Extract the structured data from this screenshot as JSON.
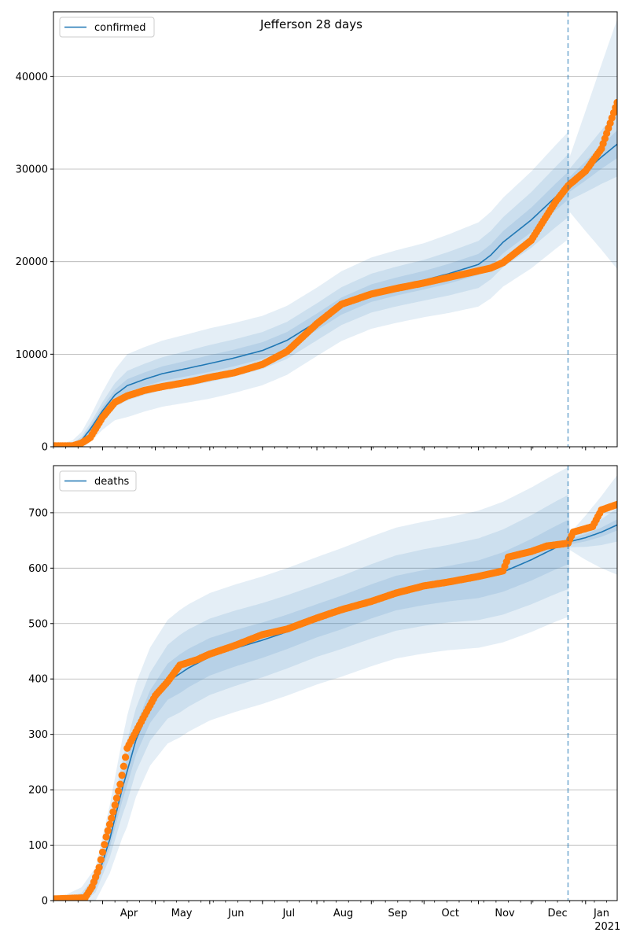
{
  "page_title": "Jefferson 28 days",
  "colors": {
    "line": "#1f77b4",
    "observed": "#ff7f0e",
    "band": "#1f77b4",
    "vline": "#1f77b4",
    "grid": "#b0b0b0"
  },
  "x_ticks": {
    "month_labels": [
      "Apr",
      "May",
      "Jun",
      "Jul",
      "Aug",
      "Sep",
      "Oct",
      "Nov",
      "Dec",
      "Jan"
    ],
    "year_label": "2021"
  },
  "chart_data": [
    {
      "type": "line",
      "legend_label": "confirmed",
      "legend_position": "top-left",
      "grid": "horizontal",
      "xlim": [
        "2020-03-04",
        "2021-01-19"
      ],
      "ylim": [
        0,
        47000
      ],
      "yticks": [
        0,
        10000,
        20000,
        30000,
        40000
      ],
      "ytick_labels": [
        "0",
        "10000",
        "20000",
        "30000",
        "40000"
      ],
      "forecast_start": "2020-12-22",
      "median": [
        [
          "2020-03-04",
          0
        ],
        [
          "2020-03-15",
          100
        ],
        [
          "2020-03-20",
          700
        ],
        [
          "2020-03-25",
          1900
        ],
        [
          "2020-04-01",
          3900
        ],
        [
          "2020-04-08",
          5600
        ],
        [
          "2020-04-15",
          6600
        ],
        [
          "2020-04-25",
          7300
        ],
        [
          "2020-05-05",
          7900
        ],
        [
          "2020-05-20",
          8500
        ],
        [
          "2020-06-01",
          9000
        ],
        [
          "2020-06-15",
          9600
        ],
        [
          "2020-07-01",
          10400
        ],
        [
          "2020-07-15",
          11500
        ],
        [
          "2020-08-01",
          13500
        ],
        [
          "2020-08-15",
          15200
        ],
        [
          "2020-09-01",
          16600
        ],
        [
          "2020-09-15",
          17300
        ],
        [
          "2020-10-01",
          18000
        ],
        [
          "2020-10-15",
          18700
        ],
        [
          "2020-11-01",
          19700
        ],
        [
          "2020-11-08",
          20700
        ],
        [
          "2020-11-15",
          22100
        ],
        [
          "2020-12-01",
          24500
        ],
        [
          "2020-12-15",
          27000
        ],
        [
          "2020-12-22",
          28200
        ],
        [
          "2021-01-01",
          29800
        ],
        [
          "2021-01-10",
          31300
        ],
        [
          "2021-01-19",
          32700
        ]
      ],
      "inner_band_halfwidth": [
        [
          "2020-03-04",
          0
        ],
        [
          "2020-03-20",
          200
        ],
        [
          "2020-04-15",
          700
        ],
        [
          "2020-06-01",
          900
        ],
        [
          "2020-08-01",
          900
        ],
        [
          "2020-10-01",
          1000
        ],
        [
          "2020-11-15",
          1200
        ],
        [
          "2020-12-22",
          1500
        ],
        [
          "2020-12-23",
          800
        ],
        [
          "2021-01-19",
          1500
        ]
      ],
      "middle_band_halfwidth": [
        [
          "2020-03-04",
          0
        ],
        [
          "2020-03-20",
          400
        ],
        [
          "2020-04-15",
          1600
        ],
        [
          "2020-06-01",
          2000
        ],
        [
          "2020-08-01",
          2000
        ],
        [
          "2020-10-01",
          2200
        ],
        [
          "2020-11-15",
          2700
        ],
        [
          "2020-12-22",
          3400
        ],
        [
          "2020-12-23",
          1700
        ],
        [
          "2021-01-19",
          3500
        ]
      ],
      "outer_band_halfwidth": [
        [
          "2020-03-04",
          0
        ],
        [
          "2020-03-20",
          900
        ],
        [
          "2020-04-15",
          3400
        ],
        [
          "2020-06-01",
          3800
        ],
        [
          "2020-08-01",
          3700
        ],
        [
          "2020-10-01",
          4000
        ],
        [
          "2020-11-15",
          4800
        ],
        [
          "2020-12-22",
          5800
        ],
        [
          "2020-12-23",
          3000
        ],
        [
          "2021-01-19",
          13500
        ]
      ],
      "observed": [
        [
          "2020-03-04",
          100
        ],
        [
          "2020-03-15",
          100
        ],
        [
          "2020-03-20",
          400
        ],
        [
          "2020-03-25",
          1000
        ],
        [
          "2020-04-01",
          3200
        ],
        [
          "2020-04-08",
          4800
        ],
        [
          "2020-04-15",
          5500
        ],
        [
          "2020-04-25",
          6100
        ],
        [
          "2020-05-05",
          6500
        ],
        [
          "2020-05-20",
          7000
        ],
        [
          "2020-06-01",
          7500
        ],
        [
          "2020-06-15",
          8000
        ],
        [
          "2020-07-01",
          8900
        ],
        [
          "2020-07-15",
          10300
        ],
        [
          "2020-08-01",
          13300
        ],
        [
          "2020-08-15",
          15400
        ],
        [
          "2020-09-01",
          16500
        ],
        [
          "2020-09-15",
          17100
        ],
        [
          "2020-10-01",
          17700
        ],
        [
          "2020-10-15",
          18300
        ],
        [
          "2020-11-01",
          19000
        ],
        [
          "2020-11-08",
          19300
        ],
        [
          "2020-11-15",
          19900
        ],
        [
          "2020-12-01",
          22300
        ],
        [
          "2020-12-15",
          26500
        ],
        [
          "2020-12-22",
          28200
        ],
        [
          "2021-01-01",
          29800
        ],
        [
          "2021-01-10",
          32200
        ],
        [
          "2021-01-19",
          37200
        ]
      ]
    },
    {
      "type": "line",
      "legend_label": "deaths",
      "legend_position": "top-left",
      "grid": "horizontal",
      "xlim": [
        "2020-03-04",
        "2021-01-19"
      ],
      "ylim": [
        0,
        785
      ],
      "yticks": [
        0,
        100,
        200,
        300,
        400,
        500,
        600,
        700
      ],
      "ytick_labels": [
        "0",
        "100",
        "200",
        "300",
        "400",
        "500",
        "600",
        "700"
      ],
      "forecast_start": "2020-12-22",
      "median": [
        [
          "2020-03-04",
          0
        ],
        [
          "2020-03-20",
          4
        ],
        [
          "2020-03-28",
          30
        ],
        [
          "2020-04-05",
          110
        ],
        [
          "2020-04-12",
          200
        ],
        [
          "2020-04-20",
          290
        ],
        [
          "2020-04-28",
          350
        ],
        [
          "2020-05-08",
          395
        ],
        [
          "2020-05-20",
          420
        ],
        [
          "2020-06-01",
          440
        ],
        [
          "2020-06-15",
          455
        ],
        [
          "2020-07-01",
          470
        ],
        [
          "2020-07-15",
          485
        ],
        [
          "2020-08-01",
          505
        ],
        [
          "2020-08-15",
          520
        ],
        [
          "2020-09-01",
          540
        ],
        [
          "2020-09-15",
          555
        ],
        [
          "2020-10-01",
          565
        ],
        [
          "2020-10-15",
          572
        ],
        [
          "2020-11-01",
          580
        ],
        [
          "2020-11-15",
          593
        ],
        [
          "2020-12-01",
          615
        ],
        [
          "2020-12-15",
          637
        ],
        [
          "2020-12-22",
          647
        ],
        [
          "2021-01-01",
          655
        ],
        [
          "2021-01-10",
          665
        ],
        [
          "2021-01-19",
          678
        ]
      ],
      "inner_band_halfwidth": [
        [
          "2020-03-04",
          0
        ],
        [
          "2020-03-28",
          8
        ],
        [
          "2020-04-15",
          25
        ],
        [
          "2020-05-15",
          35
        ],
        [
          "2020-08-01",
          30
        ],
        [
          "2020-10-15",
          32
        ],
        [
          "2020-12-22",
          40
        ],
        [
          "2020-12-23",
          5
        ],
        [
          "2021-01-19",
          10
        ]
      ],
      "middle_band_halfwidth": [
        [
          "2020-03-04",
          0
        ],
        [
          "2020-03-28",
          15
        ],
        [
          "2020-04-15",
          55
        ],
        [
          "2020-05-15",
          70
        ],
        [
          "2020-08-01",
          65
        ],
        [
          "2020-10-15",
          70
        ],
        [
          "2020-12-22",
          85
        ],
        [
          "2020-12-23",
          10
        ],
        [
          "2021-01-19",
          30
        ]
      ],
      "outer_band_halfwidth": [
        [
          "2020-03-04",
          0
        ],
        [
          "2020-03-28",
          30
        ],
        [
          "2020-04-15",
          100
        ],
        [
          "2020-05-15",
          115
        ],
        [
          "2020-08-01",
          115
        ],
        [
          "2020-10-15",
          120
        ],
        [
          "2020-12-22",
          135
        ],
        [
          "2020-12-23",
          15
        ],
        [
          "2021-01-19",
          90
        ]
      ],
      "observed": [
        [
          "2020-03-04",
          3
        ],
        [
          "2020-03-22",
          5
        ],
        [
          "2020-03-26",
          25
        ],
        [
          "2020-03-30",
          60
        ],
        [
          "2020-04-03",
          115
        ],
        [
          "2020-04-07",
          160
        ],
        [
          "2020-04-11",
          210
        ],
        [
          "2020-04-15",
          275
        ],
        [
          "2020-04-20",
          305
        ],
        [
          "2020-04-25",
          335
        ],
        [
          "2020-05-01",
          370
        ],
        [
          "2020-05-08",
          395
        ],
        [
          "2020-05-15",
          425
        ],
        [
          "2020-05-25",
          435
        ],
        [
          "2020-06-01",
          445
        ],
        [
          "2020-06-15",
          460
        ],
        [
          "2020-07-01",
          480
        ],
        [
          "2020-07-15",
          490
        ],
        [
          "2020-08-01",
          510
        ],
        [
          "2020-08-15",
          525
        ],
        [
          "2020-09-01",
          540
        ],
        [
          "2020-09-15",
          555
        ],
        [
          "2020-10-01",
          568
        ],
        [
          "2020-10-15",
          575
        ],
        [
          "2020-11-01",
          585
        ],
        [
          "2020-11-15",
          595
        ],
        [
          "2020-11-18",
          620
        ],
        [
          "2020-12-01",
          630
        ],
        [
          "2020-12-10",
          640
        ],
        [
          "2020-12-22",
          645
        ],
        [
          "2020-12-25",
          665
        ],
        [
          "2021-01-05",
          675
        ],
        [
          "2021-01-10",
          705
        ],
        [
          "2021-01-19",
          715
        ]
      ]
    }
  ]
}
